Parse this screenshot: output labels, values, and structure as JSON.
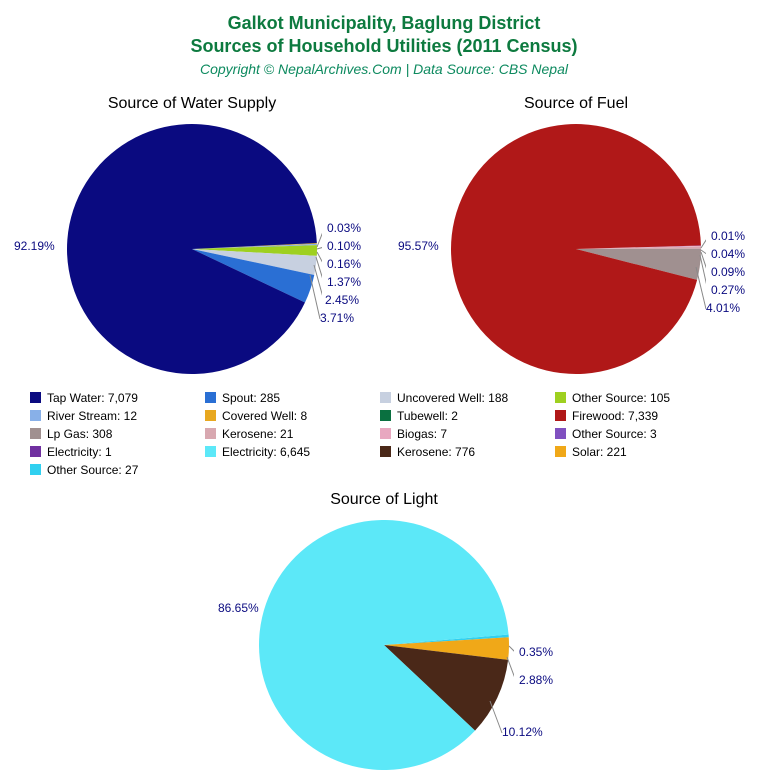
{
  "title": {
    "line1": "Galkot Municipality, Baglung District",
    "line2": "Sources of Household Utilities (2011 Census)",
    "copyright": "Copyright © NepalArchives.Com | Data Source: CBS Nepal"
  },
  "charts": {
    "water": {
      "title": "Source of Water Supply",
      "main_label": "92.19%",
      "small_labels": [
        "0.03%",
        "0.10%",
        "0.16%",
        "1.37%",
        "2.45%",
        "3.71%"
      ],
      "slices": [
        {
          "pct": 92.19,
          "color": "#0a0a80"
        },
        {
          "pct": 3.71,
          "color": "#2a6fd4"
        },
        {
          "pct": 2.45,
          "color": "#c7d0e0"
        },
        {
          "pct": 1.37,
          "color": "#9ed020"
        },
        {
          "pct": 0.16,
          "color": "#88b0e8"
        },
        {
          "pct": 0.1,
          "color": "#e8a820"
        },
        {
          "pct": 0.03,
          "color": "#0a7040"
        }
      ]
    },
    "fuel": {
      "title": "Source of Fuel",
      "main_label": "95.57%",
      "small_labels": [
        "0.01%",
        "0.04%",
        "0.09%",
        "0.27%",
        "4.01%"
      ],
      "slices": [
        {
          "pct": 95.57,
          "color": "#b01818"
        },
        {
          "pct": 4.01,
          "color": "#a09090"
        },
        {
          "pct": 0.27,
          "color": "#d8a8b0"
        },
        {
          "pct": 0.09,
          "color": "#e8a8c0"
        },
        {
          "pct": 0.04,
          "color": "#8050c0"
        },
        {
          "pct": 0.01,
          "color": "#7030a0"
        }
      ]
    },
    "light": {
      "title": "Source of Light",
      "main_label": "86.65%",
      "small_labels": [
        "0.35%",
        "2.88%",
        "10.12%"
      ],
      "slices": [
        {
          "pct": 86.65,
          "color": "#5ce8f8"
        },
        {
          "pct": 10.12,
          "color": "#4a2818"
        },
        {
          "pct": 2.88,
          "color": "#f0a818"
        },
        {
          "pct": 0.35,
          "color": "#30d0f0"
        }
      ]
    }
  },
  "legend": [
    {
      "color": "#0a0a80",
      "label": "Tap Water: 7,079"
    },
    {
      "color": "#2a6fd4",
      "label": "Spout: 285"
    },
    {
      "color": "#c7d0e0",
      "label": "Uncovered Well: 188"
    },
    {
      "color": "#9ed020",
      "label": "Other Source: 105"
    },
    {
      "color": "#88b0e8",
      "label": "River Stream: 12"
    },
    {
      "color": "#e8a820",
      "label": "Covered Well: 8"
    },
    {
      "color": "#0a7040",
      "label": "Tubewell: 2"
    },
    {
      "color": "#b01818",
      "label": "Firewood: 7,339"
    },
    {
      "color": "#a09090",
      "label": "Lp Gas: 308"
    },
    {
      "color": "#d8a8b0",
      "label": "Kerosene: 21"
    },
    {
      "color": "#e8a8c0",
      "label": "Biogas: 7"
    },
    {
      "color": "#8050c0",
      "label": "Other Source: 3"
    },
    {
      "color": "#7030a0",
      "label": "Electricity: 1"
    },
    {
      "color": "#5ce8f8",
      "label": "Electricity: 6,645"
    },
    {
      "color": "#4a2818",
      "label": "Kerosene: 776"
    },
    {
      "color": "#f0a818",
      "label": "Solar: 221"
    },
    {
      "color": "#30d0f0",
      "label": "Other Source: 27"
    }
  ]
}
